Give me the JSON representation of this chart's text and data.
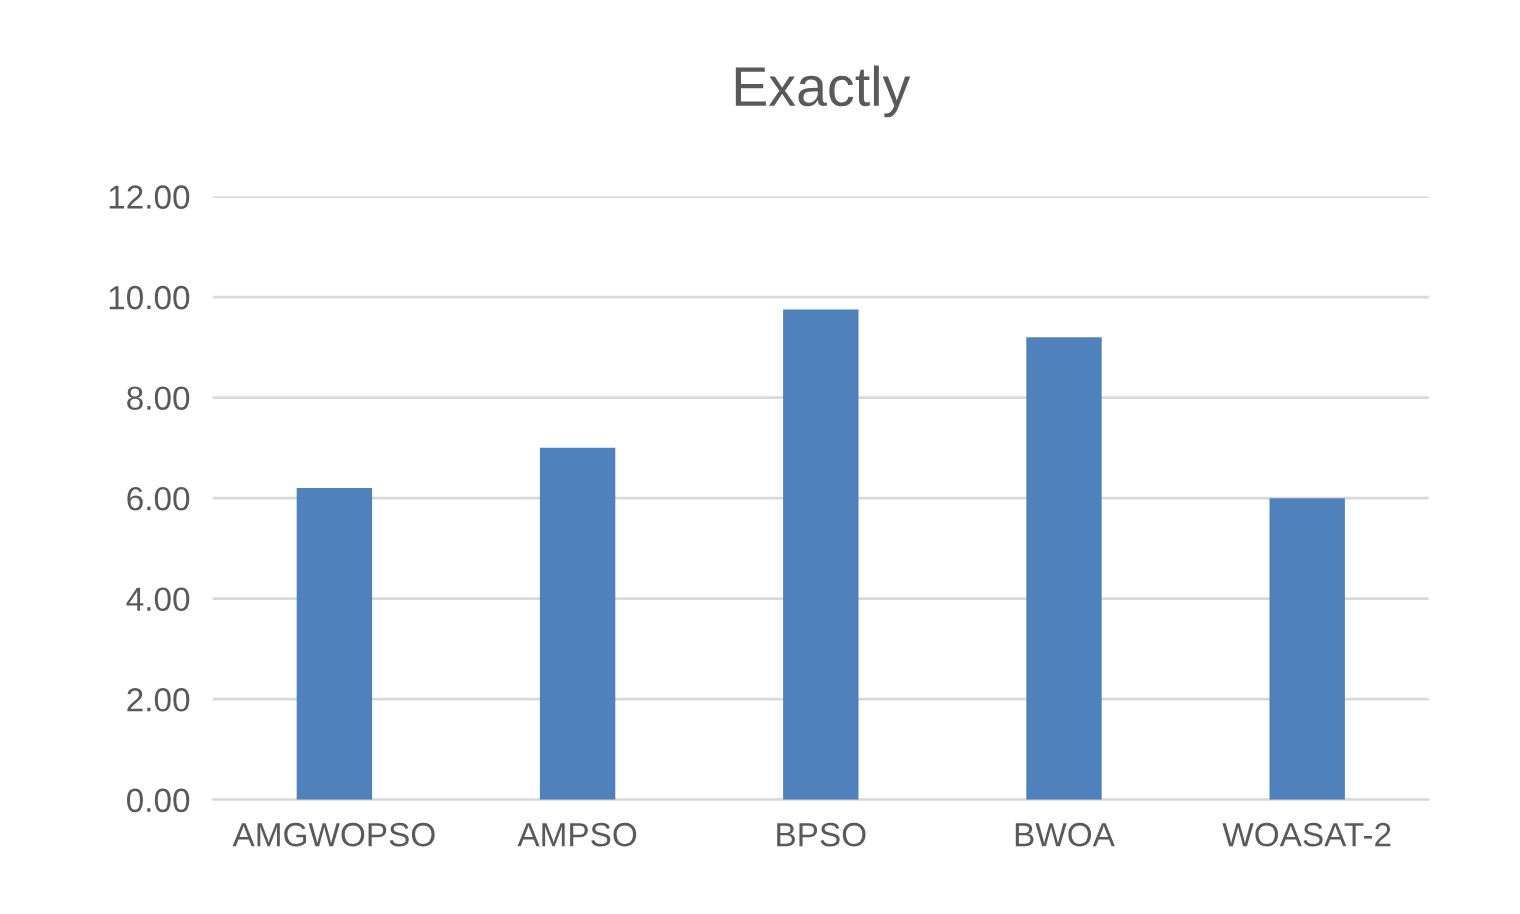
{
  "chart_data": {
    "type": "bar",
    "title": "Exactly",
    "categories": [
      "AMGWOPSO",
      "AMPSO",
      "BPSO",
      "BWOA",
      "WOASAT-2"
    ],
    "values": [
      6.2,
      7.0,
      9.75,
      9.2,
      6.0
    ],
    "color": "#4f81bd",
    "ylim": [
      0,
      12
    ],
    "yticks": [
      {
        "value": 0,
        "label": "0.00"
      },
      {
        "value": 2,
        "label": "2.00"
      },
      {
        "value": 4,
        "label": "4.00"
      },
      {
        "value": 6,
        "label": "6.00"
      },
      {
        "value": 8,
        "label": "8.00"
      },
      {
        "value": 10,
        "label": "10.00"
      },
      {
        "value": 12,
        "label": "12.00"
      }
    ],
    "grid": "y"
  }
}
